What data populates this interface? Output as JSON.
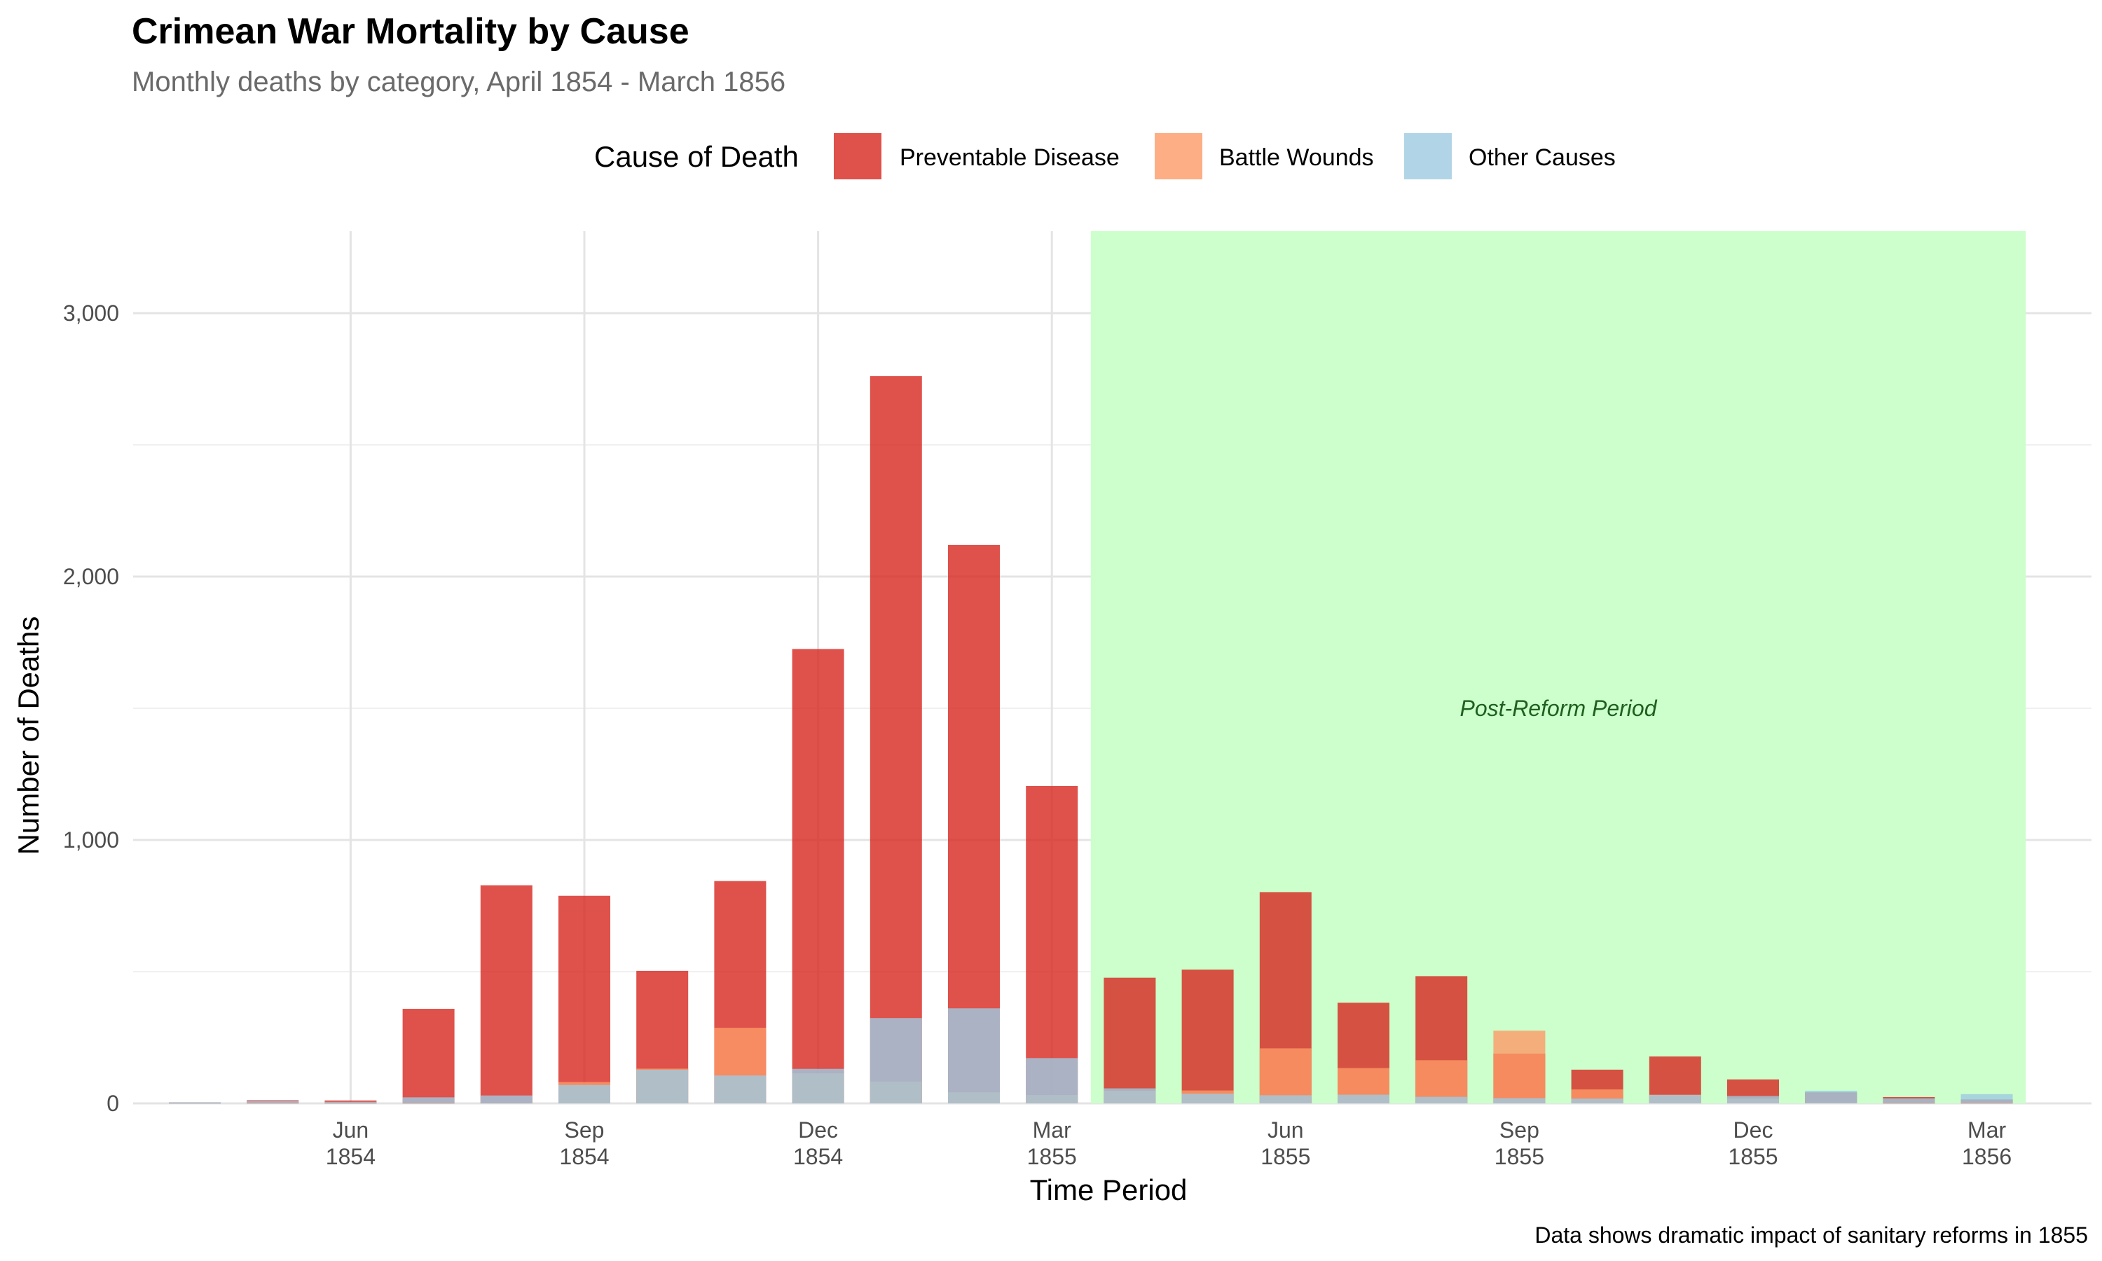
{
  "chart_data": {
    "type": "bar",
    "stacking": "overlaid",
    "title": "Crimean War Mortality by Cause",
    "subtitle": "Monthly deaths by category, April 1854 - March 1856",
    "xlabel": "Time Period",
    "ylabel": "Number of Deaths",
    "caption": "Data shows dramatic impact of sanitary reforms in 1855",
    "ylim": [
      0,
      3300
    ],
    "yticks": [
      0,
      1000,
      2000,
      3000
    ],
    "ytick_labels": [
      "0",
      "1,000",
      "2,000",
      "3,000"
    ],
    "grid": true,
    "legend": {
      "title": "Cause of Death",
      "position": "top",
      "entries": [
        "Preventable Disease",
        "Battle Wounds",
        "Other Causes"
      ]
    },
    "months": [
      "Apr 1854",
      "May 1854",
      "Jun 1854",
      "Jul 1854",
      "Aug 1854",
      "Sep 1854",
      "Oct 1854",
      "Nov 1854",
      "Dec 1854",
      "Jan 1855",
      "Feb 1855",
      "Mar 1855",
      "Apr 1855",
      "May 1855",
      "Jun 1855",
      "Jul 1855",
      "Aug 1855",
      "Sep 1855",
      "Oct 1855",
      "Nov 1855",
      "Dec 1855",
      "Jan 1856",
      "Feb 1856",
      "Mar 1856"
    ],
    "xticks": [
      {
        "month_index": 2,
        "label1": "Jun",
        "label2": "1854"
      },
      {
        "month_index": 5,
        "label1": "Sep",
        "label2": "1854"
      },
      {
        "month_index": 8,
        "label1": "Dec",
        "label2": "1854"
      },
      {
        "month_index": 11,
        "label1": "Mar",
        "label2": "1855"
      },
      {
        "month_index": 14,
        "label1": "Jun",
        "label2": "1855"
      },
      {
        "month_index": 17,
        "label1": "Sep",
        "label2": "1855"
      },
      {
        "month_index": 20,
        "label1": "Dec",
        "label2": "1855"
      },
      {
        "month_index": 23,
        "label1": "Mar",
        "label2": "1856"
      }
    ],
    "series": [
      {
        "name": "Preventable Disease",
        "color": "#d7261e",
        "values": [
          1,
          12,
          11,
          359,
          828,
          788,
          503,
          844,
          1725,
          2761,
          2120,
          1205,
          477,
          508,
          802,
          382,
          483,
          189,
          128,
          178,
          91,
          42,
          24,
          15
        ]
      },
      {
        "name": "Battle Wounds",
        "color": "#fc9a66",
        "values": [
          0,
          0,
          0,
          0,
          1,
          81,
          132,
          287,
          114,
          83,
          42,
          32,
          48,
          49,
          209,
          134,
          164,
          276,
          53,
          33,
          18,
          2,
          0,
          0
        ]
      },
      {
        "name": "Other Causes",
        "color": "#9ecae1",
        "values": [
          5,
          9,
          6,
          23,
          30,
          70,
          128,
          106,
          131,
          324,
          361,
          172,
          57,
          37,
          31,
          33,
          25,
          20,
          18,
          32,
          28,
          48,
          19,
          35
        ]
      }
    ],
    "highlight": {
      "label": "Post-Reform Period",
      "start_month": "Apr 1855",
      "end_month": "Mar 1856",
      "color": "#ccffcc"
    }
  }
}
